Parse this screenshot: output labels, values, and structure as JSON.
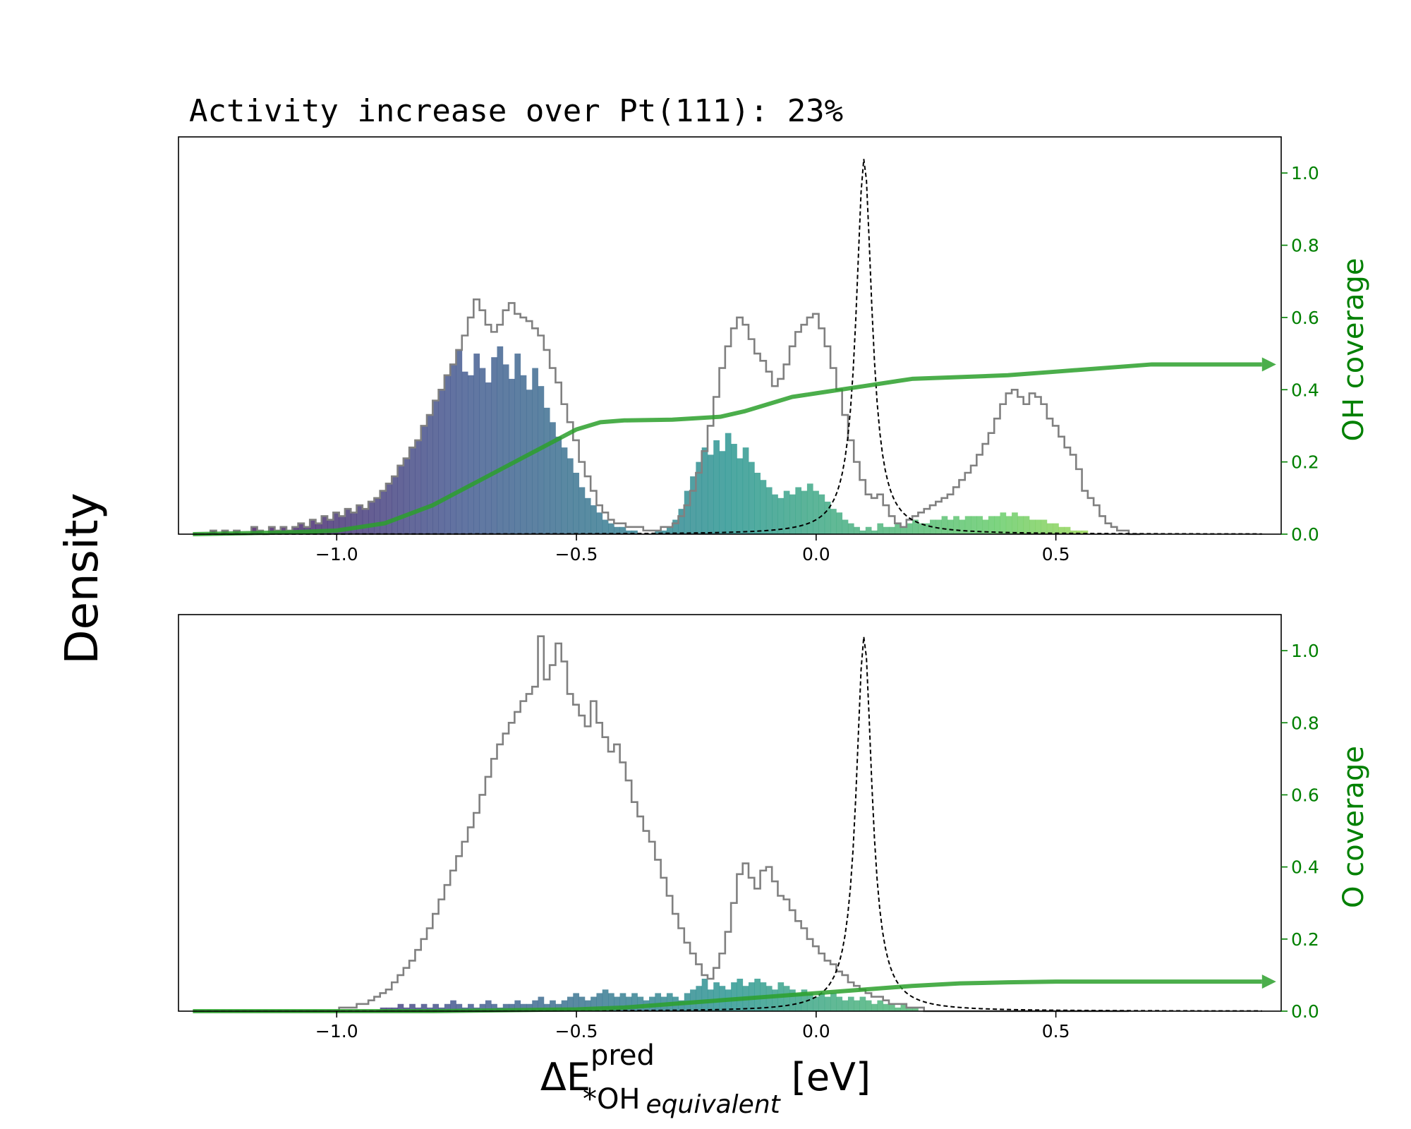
{
  "chart_data": {
    "title": "Activity increase over Pt(111):  23%",
    "ylabel": "Density",
    "xlabel": {
      "main": "ΔE",
      "sup": "pred",
      "sub": "*OH",
      "subsub": "equivalent",
      "unit": "[eV]"
    },
    "xlim": [
      -1.33,
      0.97
    ],
    "xticks": [
      -1.0,
      -0.5,
      0.0,
      0.5
    ],
    "xtick_labels": [
      "−1.0",
      "−0.5",
      "0.0",
      "0.5"
    ],
    "coverage_yticks": [
      "0.0",
      "0.2",
      "0.4",
      "0.6",
      "0.8",
      "1.0"
    ],
    "coverage_ylim": [
      0,
      1.1
    ],
    "colors": {
      "coverage": "#008000",
      "coverage_line": "#2ca02c",
      "outline": "#808080",
      "peak": "#000000",
      "cmap_start": "#440154",
      "cmap_end": "#fde725"
    },
    "subplots": [
      {
        "type": "histogram",
        "y2label": "OH coverage",
        "outline_hist": {
          "bin_edges_start": -1.3,
          "bin_width": 0.0122,
          "heights": [
            0.0,
            0.0,
            0.0,
            0.01,
            0.0,
            0.01,
            0.0,
            0.01,
            0.0,
            0.0,
            0.02,
            0.01,
            0.0,
            0.02,
            0.01,
            0.02,
            0.01,
            0.02,
            0.03,
            0.02,
            0.04,
            0.03,
            0.05,
            0.04,
            0.06,
            0.05,
            0.07,
            0.06,
            0.08,
            0.07,
            0.09,
            0.1,
            0.12,
            0.14,
            0.16,
            0.19,
            0.21,
            0.24,
            0.26,
            0.3,
            0.33,
            0.37,
            0.4,
            0.44,
            0.47,
            0.51,
            0.55,
            0.6,
            0.65,
            0.62,
            0.58,
            0.56,
            0.58,
            0.62,
            0.64,
            0.61,
            0.6,
            0.59,
            0.57,
            0.55,
            0.51,
            0.46,
            0.42,
            0.36,
            0.31,
            0.26,
            0.2,
            0.16,
            0.12,
            0.08,
            0.06,
            0.04,
            0.03,
            0.03,
            0.02,
            0.02,
            0.02,
            0.01,
            0.01,
            0.01,
            0.02,
            0.02,
            0.03,
            0.05,
            0.08,
            0.12,
            0.17,
            0.23,
            0.3,
            0.38,
            0.46,
            0.52,
            0.57,
            0.6,
            0.58,
            0.54,
            0.5,
            0.48,
            0.45,
            0.41,
            0.43,
            0.47,
            0.52,
            0.56,
            0.58,
            0.6,
            0.61,
            0.57,
            0.52,
            0.46,
            0.4,
            0.33,
            0.26,
            0.2,
            0.15,
            0.11,
            0.1,
            0.11,
            0.08,
            0.05,
            0.03,
            0.02,
            0.04,
            0.05,
            0.06,
            0.07,
            0.08,
            0.09,
            0.1,
            0.11,
            0.13,
            0.15,
            0.17,
            0.19,
            0.22,
            0.25,
            0.28,
            0.32,
            0.36,
            0.39,
            0.4,
            0.38,
            0.36,
            0.39,
            0.38,
            0.36,
            0.32,
            0.3,
            0.27,
            0.24,
            0.22,
            0.18,
            0.12,
            0.1,
            0.08,
            0.05,
            0.03,
            0.02,
            0.01,
            0.01,
            0.0,
            0.0
          ]
        },
        "colored_hist": {
          "bin_edges_start": -1.3,
          "bin_width": 0.0122,
          "heights": [
            0.0,
            0.0,
            0.0,
            0.01,
            0.0,
            0.01,
            0.0,
            0.01,
            0.0,
            0.0,
            0.02,
            0.01,
            0.0,
            0.02,
            0.01,
            0.02,
            0.01,
            0.02,
            0.03,
            0.02,
            0.04,
            0.03,
            0.05,
            0.04,
            0.06,
            0.05,
            0.07,
            0.06,
            0.08,
            0.07,
            0.09,
            0.1,
            0.12,
            0.14,
            0.16,
            0.19,
            0.21,
            0.24,
            0.26,
            0.3,
            0.33,
            0.37,
            0.4,
            0.44,
            0.47,
            0.51,
            0.45,
            0.44,
            0.5,
            0.46,
            0.42,
            0.49,
            0.52,
            0.47,
            0.43,
            0.5,
            0.44,
            0.4,
            0.46,
            0.41,
            0.35,
            0.31,
            0.27,
            0.24,
            0.21,
            0.17,
            0.13,
            0.1,
            0.08,
            0.06,
            0.04,
            0.03,
            0.02,
            0.02,
            0.01,
            0.01,
            0.0,
            0.0,
            0.0,
            0.01,
            0.01,
            0.02,
            0.04,
            0.07,
            0.12,
            0.16,
            0.2,
            0.24,
            0.22,
            0.26,
            0.23,
            0.28,
            0.25,
            0.21,
            0.24,
            0.2,
            0.17,
            0.15,
            0.13,
            0.11,
            0.1,
            0.12,
            0.11,
            0.13,
            0.12,
            0.14,
            0.12,
            0.11,
            0.09,
            0.07,
            0.06,
            0.04,
            0.03,
            0.02,
            0.01,
            0.02,
            0.01,
            0.03,
            0.02,
            0.02,
            0.03,
            0.02,
            0.03,
            0.04,
            0.03,
            0.03,
            0.04,
            0.04,
            0.05,
            0.04,
            0.05,
            0.04,
            0.05,
            0.05,
            0.05,
            0.04,
            0.05,
            0.05,
            0.06,
            0.05,
            0.06,
            0.05,
            0.05,
            0.04,
            0.04,
            0.04,
            0.03,
            0.03,
            0.02,
            0.02,
            0.01,
            0.01,
            0.01,
            0.0,
            0.0,
            0.0,
            0.0,
            0.0,
            0.0,
            0.0,
            0.0
          ]
        },
        "coverage_line": {
          "x": [
            -1.3,
            -1.1,
            -1.0,
            -0.9,
            -0.8,
            -0.7,
            -0.6,
            -0.5,
            -0.45,
            -0.4,
            -0.3,
            -0.2,
            -0.15,
            -0.1,
            -0.05,
            0.0,
            0.1,
            0.2,
            0.3,
            0.4,
            0.5,
            0.6,
            0.7,
            0.8,
            0.93
          ],
          "y": [
            0.0,
            0.005,
            0.01,
            0.03,
            0.08,
            0.15,
            0.22,
            0.29,
            0.31,
            0.315,
            0.317,
            0.325,
            0.34,
            0.36,
            0.38,
            0.39,
            0.41,
            0.43,
            0.435,
            0.44,
            0.45,
            0.46,
            0.47,
            0.47,
            0.47
          ]
        },
        "peak": {
          "center": 0.1,
          "height": 1.04,
          "width": 0.02
        }
      },
      {
        "type": "histogram",
        "y2label": "O coverage",
        "outline_hist": {
          "bin_edges_start": -1.3,
          "bin_width": 0.0122,
          "heights": [
            0.0,
            0.0,
            0.0,
            0.0,
            0.0,
            0.0,
            0.0,
            0.0,
            0.0,
            0.0,
            0.0,
            0.0,
            0.0,
            0.0,
            0.0,
            0.0,
            0.0,
            0.0,
            0.0,
            0.0,
            0.0,
            0.0,
            0.0,
            0.0,
            0.0,
            0.01,
            0.01,
            0.01,
            0.02,
            0.02,
            0.03,
            0.04,
            0.05,
            0.06,
            0.08,
            0.1,
            0.12,
            0.14,
            0.17,
            0.2,
            0.23,
            0.27,
            0.31,
            0.35,
            0.39,
            0.43,
            0.47,
            0.51,
            0.55,
            0.6,
            0.65,
            0.7,
            0.74,
            0.77,
            0.8,
            0.83,
            0.86,
            0.88,
            0.9,
            1.04,
            0.92,
            0.96,
            1.02,
            0.97,
            0.88,
            0.85,
            0.82,
            0.79,
            0.86,
            0.8,
            0.76,
            0.72,
            0.74,
            0.69,
            0.64,
            0.58,
            0.54,
            0.5,
            0.47,
            0.42,
            0.37,
            0.32,
            0.27,
            0.23,
            0.19,
            0.16,
            0.13,
            0.1,
            0.09,
            0.12,
            0.16,
            0.22,
            0.3,
            0.38,
            0.41,
            0.37,
            0.34,
            0.39,
            0.4,
            0.36,
            0.32,
            0.31,
            0.28,
            0.25,
            0.23,
            0.2,
            0.18,
            0.16,
            0.14,
            0.13,
            0.11,
            0.1,
            0.08,
            0.07,
            0.06,
            0.05,
            0.04,
            0.04,
            0.03,
            0.02,
            0.02,
            0.02,
            0.01,
            0.01,
            0.01,
            0.0,
            0.0,
            0.0,
            0.0,
            0.0,
            0.0,
            0.0,
            0.0,
            0.0,
            0.0,
            0.0,
            0.0,
            0.0,
            0.0,
            0.0,
            0.0,
            0.0,
            0.0,
            0.0,
            0.0,
            0.0,
            0.0,
            0.0,
            0.0,
            0.0,
            0.0,
            0.0,
            0.0,
            0.0,
            0.0,
            0.0,
            0.0,
            0.0,
            0.0,
            0.0
          ]
        },
        "colored_hist": {
          "bin_edges_start": -1.3,
          "bin_width": 0.0122,
          "heights": [
            0.0,
            0.0,
            0.0,
            0.0,
            0.0,
            0.0,
            0.0,
            0.0,
            0.0,
            0.0,
            0.0,
            0.0,
            0.0,
            0.0,
            0.0,
            0.0,
            0.0,
            0.0,
            0.0,
            0.0,
            0.0,
            0.0,
            0.0,
            0.0,
            0.0,
            0.0,
            0.0,
            0.0,
            0.0,
            0.0,
            0.0,
            0.0,
            0.01,
            0.01,
            0.01,
            0.02,
            0.01,
            0.02,
            0.01,
            0.02,
            0.01,
            0.02,
            0.01,
            0.02,
            0.03,
            0.02,
            0.01,
            0.02,
            0.01,
            0.02,
            0.03,
            0.02,
            0.01,
            0.02,
            0.02,
            0.03,
            0.02,
            0.02,
            0.03,
            0.04,
            0.02,
            0.03,
            0.02,
            0.03,
            0.04,
            0.05,
            0.04,
            0.03,
            0.04,
            0.05,
            0.06,
            0.05,
            0.04,
            0.05,
            0.04,
            0.05,
            0.04,
            0.03,
            0.04,
            0.05,
            0.04,
            0.05,
            0.04,
            0.03,
            0.05,
            0.06,
            0.07,
            0.09,
            0.06,
            0.08,
            0.07,
            0.06,
            0.08,
            0.09,
            0.07,
            0.08,
            0.09,
            0.08,
            0.07,
            0.06,
            0.08,
            0.07,
            0.06,
            0.05,
            0.06,
            0.05,
            0.04,
            0.05,
            0.04,
            0.05,
            0.04,
            0.03,
            0.04,
            0.03,
            0.04,
            0.03,
            0.02,
            0.03,
            0.02,
            0.02,
            0.01,
            0.02,
            0.01,
            0.01,
            0.0,
            0.0,
            0.0,
            0.0,
            0.0,
            0.0,
            0.0,
            0.0,
            0.0,
            0.0,
            0.0,
            0.0,
            0.0,
            0.0,
            0.0,
            0.0,
            0.0,
            0.0,
            0.0,
            0.0,
            0.0,
            0.0,
            0.0,
            0.0,
            0.0,
            0.0,
            0.0,
            0.0,
            0.0,
            0.0,
            0.0,
            0.0,
            0.0,
            0.0,
            0.0,
            0.0,
            0.0
          ]
        },
        "coverage_line": {
          "x": [
            -1.3,
            -0.8,
            -0.5,
            -0.4,
            -0.3,
            -0.2,
            -0.1,
            0.0,
            0.1,
            0.2,
            0.3,
            0.4,
            0.5,
            0.6,
            0.7,
            0.8,
            0.93
          ],
          "y": [
            0.0,
            0.0,
            0.005,
            0.01,
            0.02,
            0.03,
            0.04,
            0.05,
            0.06,
            0.07,
            0.077,
            0.08,
            0.082,
            0.082,
            0.082,
            0.082,
            0.082
          ]
        },
        "peak": {
          "center": 0.1,
          "height": 1.04,
          "width": 0.02
        }
      }
    ]
  }
}
